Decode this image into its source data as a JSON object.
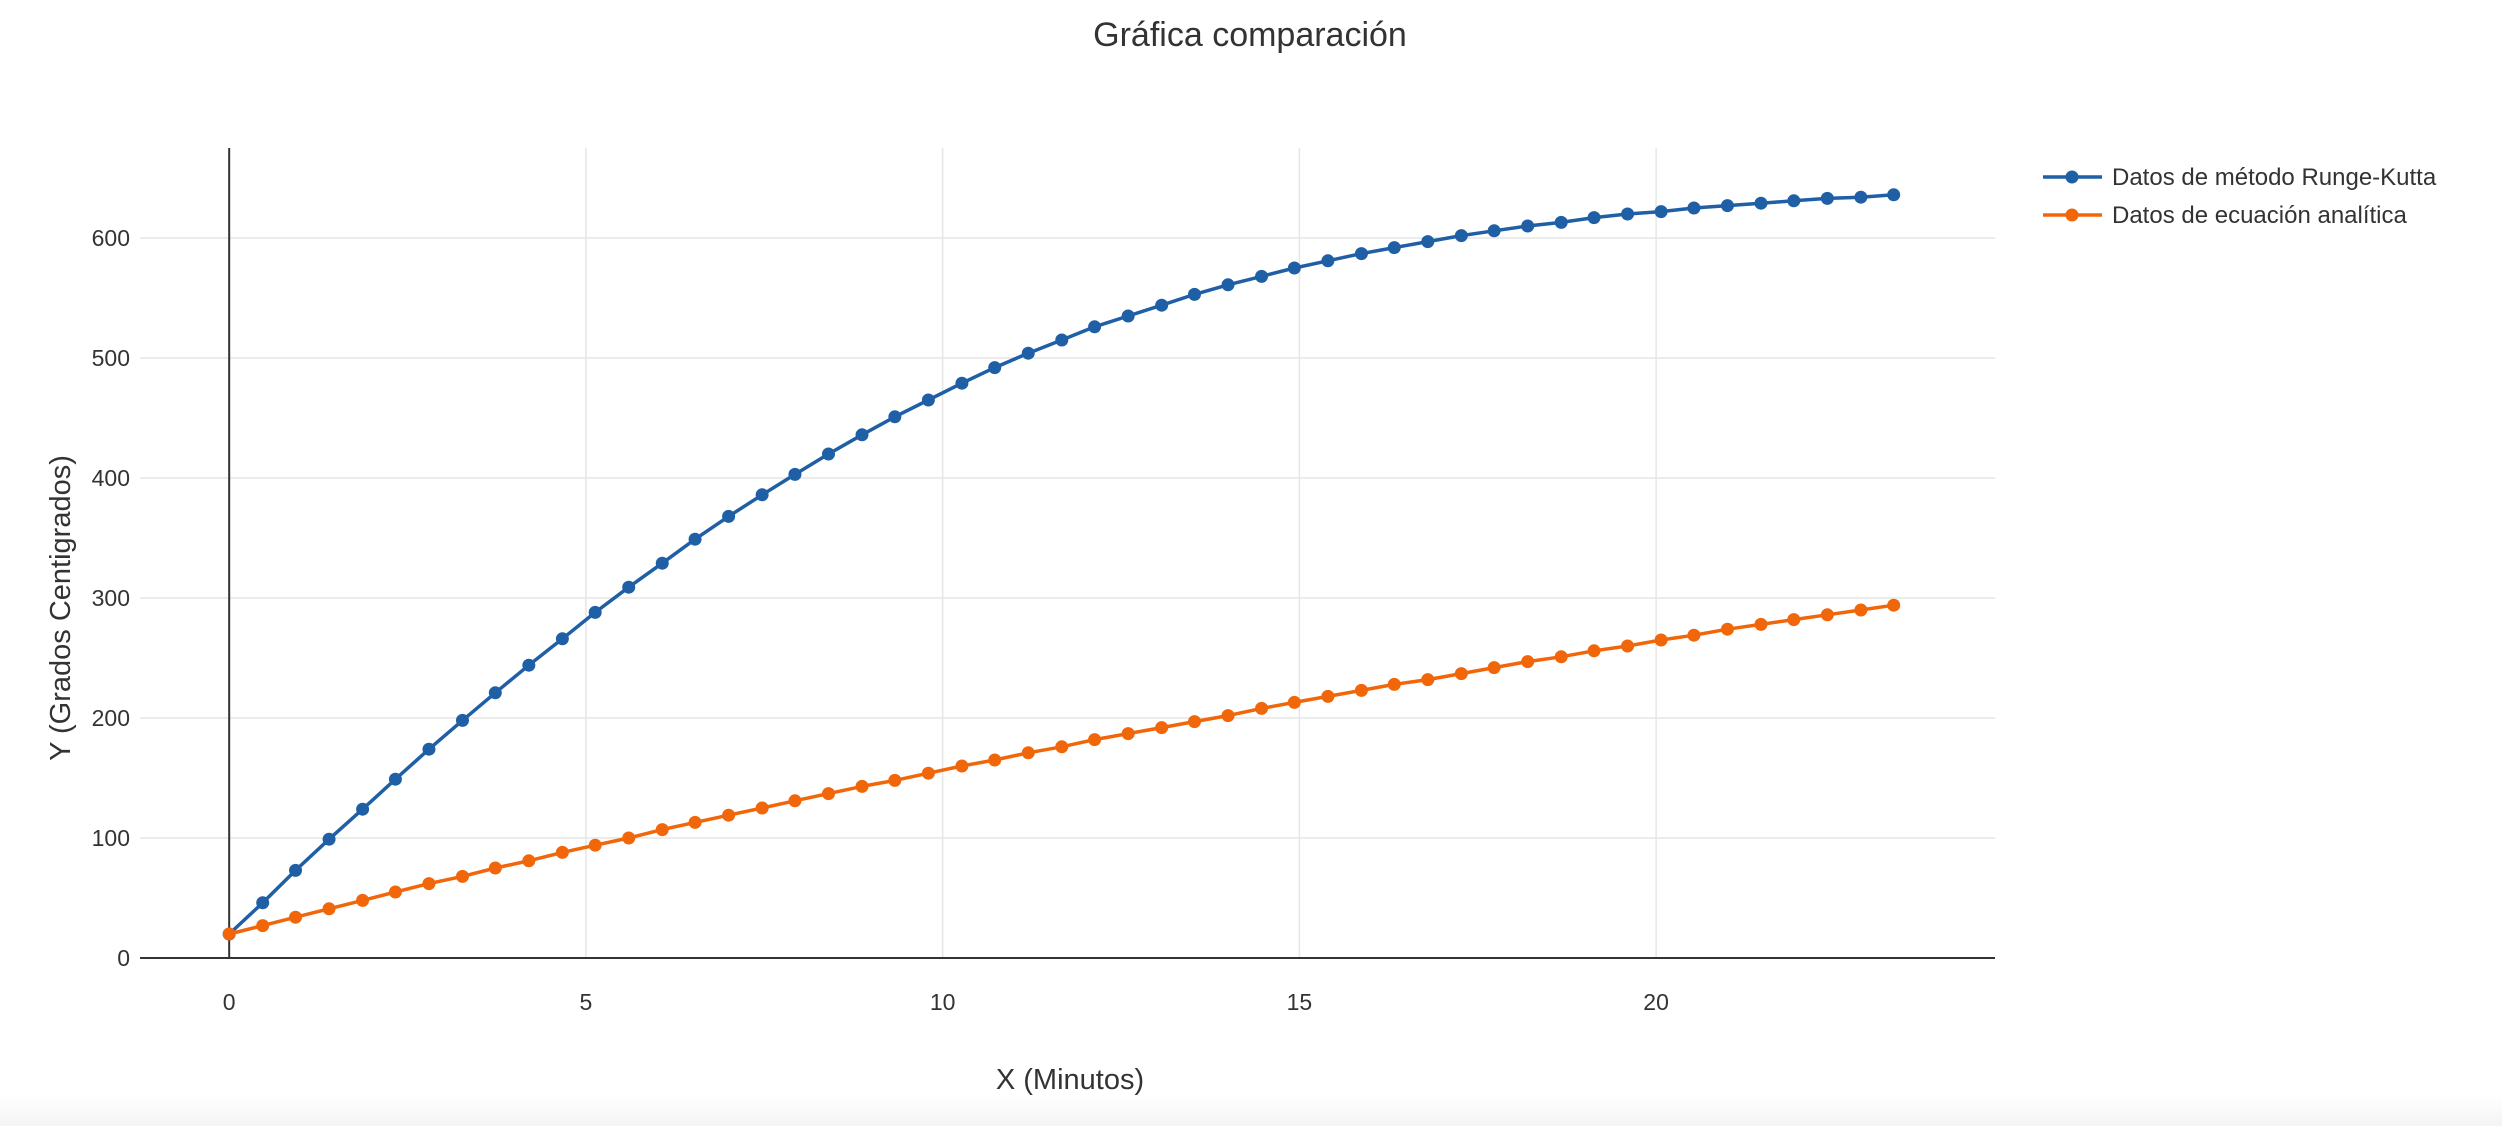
{
  "chart_data": {
    "type": "line",
    "title": "Gráfica comparación",
    "xlabel": "X (Minutos)",
    "ylabel": "Y (Grados Centigrados)",
    "xlim": [
      -1.25,
      24.75
    ],
    "ylim": [
      0,
      675
    ],
    "x_ticks": [
      0,
      5,
      10,
      15,
      20
    ],
    "x_tick_labels": [
      "0",
      "5",
      "10",
      "15",
      "20"
    ],
    "y_ticks": [
      0,
      100,
      200,
      300,
      400,
      500,
      600
    ],
    "y_tick_labels": [
      "0",
      "100",
      "200",
      "300",
      "400",
      "500",
      "600"
    ],
    "grid": true,
    "legend_position": "top-right",
    "x": [
      0,
      0.47,
      0.93,
      1.4,
      1.87,
      2.33,
      2.8,
      3.27,
      3.73,
      4.2,
      4.67,
      5.13,
      5.6,
      6.07,
      6.53,
      7.0,
      7.47,
      7.93,
      8.4,
      8.87,
      9.33,
      9.8,
      10.27,
      10.73,
      11.2,
      11.67,
      12.13,
      12.6,
      13.07,
      13.53,
      14.0,
      14.47,
      14.93,
      15.4,
      15.87,
      16.33,
      16.8,
      17.27,
      17.73,
      18.2,
      18.67,
      19.13,
      19.6,
      20.07,
      20.53,
      21.0,
      21.47,
      21.93,
      22.4,
      22.87,
      23.33
    ],
    "series": [
      {
        "name": "Datos de método Runge-Kutta",
        "color": "#1f5fa6",
        "values": [
          20,
          46,
          73,
          99,
          124,
          149,
          174,
          198,
          221,
          244,
          266,
          288,
          309,
          329,
          349,
          368,
          386,
          403,
          420,
          436,
          451,
          465,
          479,
          492,
          504,
          515,
          526,
          535,
          544,
          553,
          561,
          568,
          575,
          581,
          587,
          592,
          597,
          602,
          606,
          610,
          613,
          617,
          620,
          622,
          625,
          627,
          629,
          631,
          633,
          634,
          636
        ]
      },
      {
        "name": "Datos de ecuación analítica",
        "color": "#f2660a",
        "values": [
          20,
          27,
          34,
          41,
          48,
          55,
          62,
          68,
          75,
          81,
          88,
          94,
          100,
          107,
          113,
          119,
          125,
          131,
          137,
          143,
          148,
          154,
          160,
          165,
          171,
          176,
          182,
          187,
          192,
          197,
          202,
          208,
          213,
          218,
          223,
          228,
          232,
          237,
          242,
          247,
          251,
          256,
          260,
          265,
          269,
          274,
          278,
          282,
          286,
          290,
          294
        ]
      }
    ]
  }
}
